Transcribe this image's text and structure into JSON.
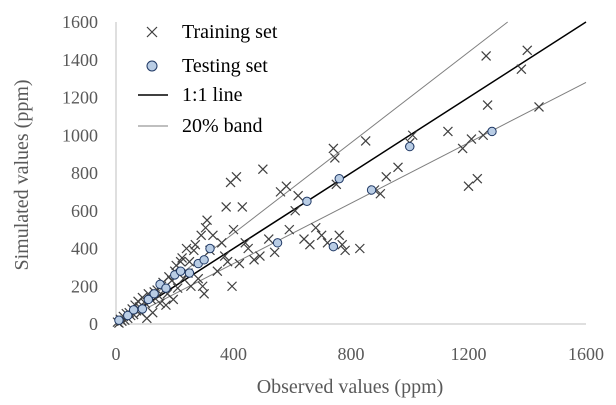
{
  "chart_data": {
    "type": "scatter",
    "xlabel": "Observed values  (ppm)",
    "ylabel": "Simulated  values  (ppm)",
    "xlim": [
      0,
      1600
    ],
    "ylim": [
      0,
      1600
    ],
    "xticks": [
      0,
      400,
      800,
      1200,
      1600
    ],
    "yticks": [
      0,
      200,
      400,
      600,
      800,
      1000,
      1200,
      1400,
      1600
    ],
    "grid": false,
    "legend_position": "top-left",
    "colors": {
      "training": "#404040",
      "testing_fill": "#b9cde5",
      "testing_stroke": "#1f3864",
      "line11": "#000000",
      "band": "#7f7f7f",
      "axis": "#bfbfbf"
    },
    "series": [
      {
        "name": "Training set",
        "marker": "x",
        "points": [
          [
            5,
            10
          ],
          [
            10,
            5
          ],
          [
            15,
            25
          ],
          [
            20,
            15
          ],
          [
            25,
            40
          ],
          [
            30,
            20
          ],
          [
            35,
            55
          ],
          [
            40,
            30
          ],
          [
            45,
            60
          ],
          [
            50,
            45
          ],
          [
            55,
            80
          ],
          [
            60,
            50
          ],
          [
            65,
            100
          ],
          [
            70,
            70
          ],
          [
            75,
            120
          ],
          [
            80,
            90
          ],
          [
            85,
            60
          ],
          [
            90,
            140
          ],
          [
            100,
            110
          ],
          [
            105,
            30
          ],
          [
            110,
            160
          ],
          [
            120,
            130
          ],
          [
            125,
            60
          ],
          [
            130,
            170
          ],
          [
            140,
            180
          ],
          [
            145,
            150
          ],
          [
            150,
            110
          ],
          [
            155,
            200
          ],
          [
            160,
            220
          ],
          [
            170,
            100
          ],
          [
            175,
            160
          ],
          [
            180,
            250
          ],
          [
            190,
            230
          ],
          [
            195,
            130
          ],
          [
            200,
            280
          ],
          [
            205,
            310
          ],
          [
            210,
            190
          ],
          [
            220,
            330
          ],
          [
            225,
            350
          ],
          [
            230,
            240
          ],
          [
            240,
            400
          ],
          [
            245,
            270
          ],
          [
            250,
            330
          ],
          [
            255,
            200
          ],
          [
            265,
            390
          ],
          [
            270,
            420
          ],
          [
            280,
            240
          ],
          [
            290,
            470
          ],
          [
            295,
            200
          ],
          [
            300,
            160
          ],
          [
            305,
            510
          ],
          [
            310,
            550
          ],
          [
            320,
            390
          ],
          [
            330,
            470
          ],
          [
            345,
            280
          ],
          [
            360,
            430
          ],
          [
            370,
            360
          ],
          [
            375,
            620
          ],
          [
            380,
            330
          ],
          [
            390,
            750
          ],
          [
            395,
            200
          ],
          [
            400,
            500
          ],
          [
            410,
            780
          ],
          [
            420,
            320
          ],
          [
            430,
            620
          ],
          [
            440,
            430
          ],
          [
            450,
            400
          ],
          [
            470,
            340
          ],
          [
            490,
            360
          ],
          [
            500,
            820
          ],
          [
            520,
            450
          ],
          [
            540,
            380
          ],
          [
            560,
            700
          ],
          [
            580,
            730
          ],
          [
            590,
            500
          ],
          [
            610,
            600
          ],
          [
            620,
            680
          ],
          [
            640,
            450
          ],
          [
            660,
            420
          ],
          [
            680,
            510
          ],
          [
            700,
            470
          ],
          [
            720,
            430
          ],
          [
            740,
            930
          ],
          [
            745,
            880
          ],
          [
            750,
            740
          ],
          [
            760,
            470
          ],
          [
            770,
            420
          ],
          [
            780,
            390
          ],
          [
            830,
            400
          ],
          [
            850,
            970
          ],
          [
            880,
            710
          ],
          [
            900,
            690
          ],
          [
            920,
            780
          ],
          [
            960,
            830
          ],
          [
            1000,
            960
          ],
          [
            1010,
            1000
          ],
          [
            1130,
            1020
          ],
          [
            1180,
            930
          ],
          [
            1200,
            730
          ],
          [
            1210,
            980
          ],
          [
            1230,
            770
          ],
          [
            1250,
            1000
          ],
          [
            1260,
            1420
          ],
          [
            1265,
            1160
          ],
          [
            1380,
            1350
          ],
          [
            1400,
            1450
          ],
          [
            1440,
            1150
          ]
        ]
      },
      {
        "name": "Testing set",
        "marker": "circle",
        "points": [
          [
            10,
            20
          ],
          [
            40,
            45
          ],
          [
            60,
            75
          ],
          [
            90,
            80
          ],
          [
            110,
            130
          ],
          [
            130,
            160
          ],
          [
            150,
            210
          ],
          [
            170,
            190
          ],
          [
            200,
            260
          ],
          [
            220,
            280
          ],
          [
            250,
            270
          ],
          [
            280,
            320
          ],
          [
            300,
            340
          ],
          [
            320,
            400
          ],
          [
            550,
            430
          ],
          [
            650,
            650
          ],
          [
            740,
            410
          ],
          [
            760,
            770
          ],
          [
            870,
            710
          ],
          [
            1000,
            940
          ],
          [
            1280,
            1020
          ]
        ]
      },
      {
        "name": "1:1 line",
        "type": "line",
        "slope": 1.0
      },
      {
        "name": "20% band",
        "type": "line",
        "slopes": [
          1.2,
          0.8
        ]
      }
    ]
  }
}
